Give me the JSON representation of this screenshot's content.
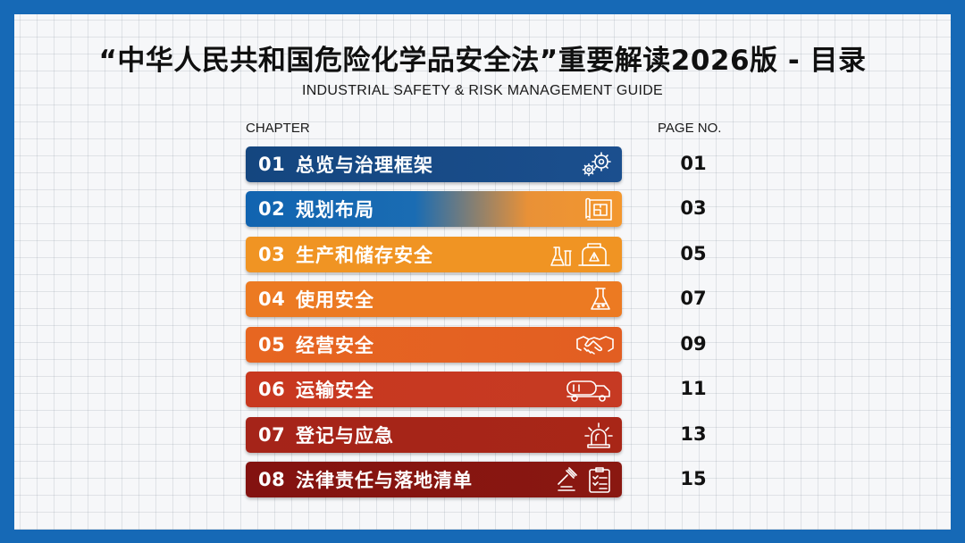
{
  "title": "“中华人民共和国危险化学品安全法”重要解读2026版 - 目录",
  "subtitle": "INDUSTRIAL SAFETY & RISK MANAGEMENT GUIDE",
  "headers": {
    "chapter": "CHAPTER",
    "page": "PAGE NO."
  },
  "chapters": [
    {
      "num": "01",
      "label": "总览与治理框架",
      "page": "01",
      "icon": "gears-icon",
      "color": "#14467f"
    },
    {
      "num": "02",
      "label": "规划布局",
      "page": "03",
      "icon": "blueprint-icon",
      "color": "#1164b0"
    },
    {
      "num": "03",
      "label": "生产和储存安全",
      "page": "05",
      "icon": "lab-tank-icon",
      "color": "#f09423"
    },
    {
      "num": "04",
      "label": "使用安全",
      "page": "07",
      "icon": "flask-icon",
      "color": "#ec7a22"
    },
    {
      "num": "05",
      "label": "经营安全",
      "page": "09",
      "icon": "handshake-icon",
      "color": "#e76621"
    },
    {
      "num": "06",
      "label": "运输安全",
      "page": "11",
      "icon": "tanker-truck-icon",
      "color": "#c8381f"
    },
    {
      "num": "07",
      "label": "登记与应急",
      "page": "13",
      "icon": "alarm-light-icon",
      "color": "#a52419"
    },
    {
      "num": "08",
      "label": "法律责任与落地清单",
      "page": "15",
      "icon": "gavel-checklist-icon",
      "color": "#831210"
    }
  ]
}
